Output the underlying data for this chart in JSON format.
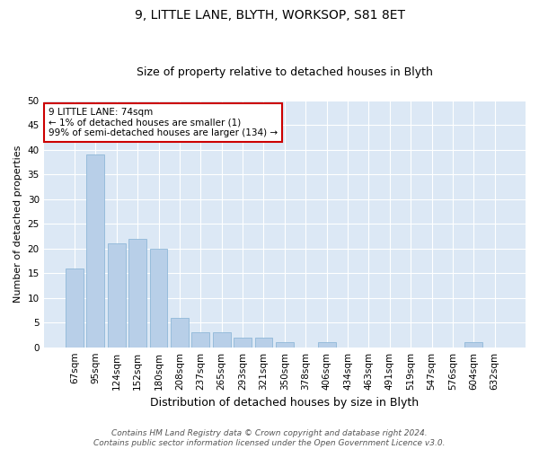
{
  "title_line1": "9, LITTLE LANE, BLYTH, WORKSOP, S81 8ET",
  "title_line2": "Size of property relative to detached houses in Blyth",
  "xlabel": "Distribution of detached houses by size in Blyth",
  "ylabel": "Number of detached properties",
  "categories": [
    "67sqm",
    "95sqm",
    "124sqm",
    "152sqm",
    "180sqm",
    "208sqm",
    "237sqm",
    "265sqm",
    "293sqm",
    "321sqm",
    "350sqm",
    "378sqm",
    "406sqm",
    "434sqm",
    "463sqm",
    "491sqm",
    "519sqm",
    "547sqm",
    "576sqm",
    "604sqm",
    "632sqm"
  ],
  "values": [
    16,
    39,
    21,
    22,
    20,
    6,
    3,
    3,
    2,
    2,
    1,
    0,
    1,
    0,
    0,
    0,
    0,
    0,
    0,
    1,
    0
  ],
  "bar_color": "#b8cfe8",
  "bar_edge_color": "#8fb8d8",
  "ylim": [
    0,
    50
  ],
  "yticks": [
    0,
    5,
    10,
    15,
    20,
    25,
    30,
    35,
    40,
    45,
    50
  ],
  "annotation_text": "9 LITTLE LANE: 74sqm\n← 1% of detached houses are smaller (1)\n99% of semi-detached houses are larger (134) →",
  "annotation_box_color": "#ffffff",
  "annotation_box_edge": "#cc0000",
  "footer_line1": "Contains HM Land Registry data © Crown copyright and database right 2024.",
  "footer_line2": "Contains public sector information licensed under the Open Government Licence v3.0.",
  "fig_bg_color": "#ffffff",
  "plot_bg_color": "#dce8f5",
  "grid_color": "#ffffff",
  "title_fontsize": 10,
  "subtitle_fontsize": 9,
  "ylabel_fontsize": 8,
  "xlabel_fontsize": 9,
  "tick_fontsize": 7.5,
  "footer_fontsize": 6.5
}
